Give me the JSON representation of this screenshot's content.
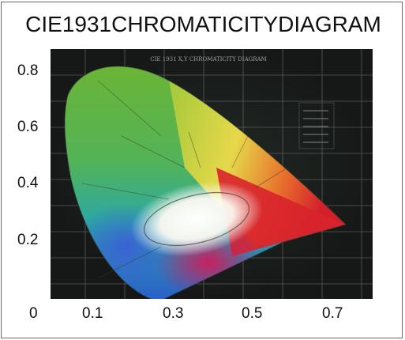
{
  "title": "CIE1931CHROMATICITYDIAGRAM",
  "inner_title": "CIE 1931 X,Y CHROMATICITY DIAGRAM",
  "y_ticks": [
    "0.8",
    "0.6",
    "0.4",
    "0.2"
  ],
  "x_ticks": [
    "0",
    "0.1",
    "0.3",
    "0.5",
    "0.7"
  ],
  "colors": {
    "background": "#1b1f1d",
    "grid": "#8a8f8c",
    "red": "#d8222c",
    "green": "#7cbb2a",
    "blue": "#2a78c8",
    "white_point": "#ffffff"
  }
}
